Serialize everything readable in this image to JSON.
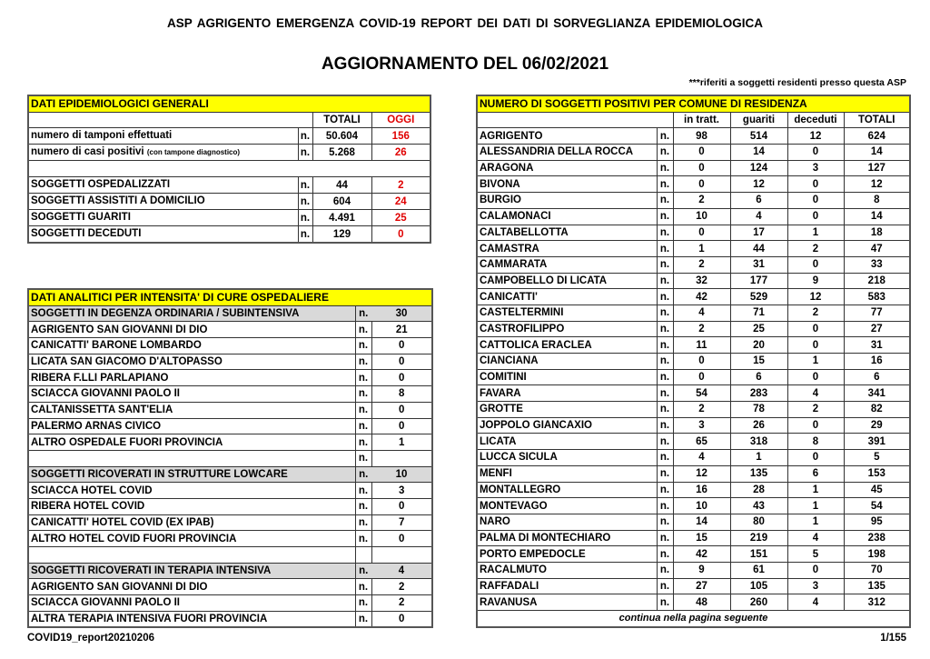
{
  "header": {
    "title": "ASP AGRIGENTO   EMERGENZA COVID-19   REPORT DEI DATI DI SORVEGLIANZA EPIDEMIOLOGICA",
    "subtitle": "AGGIORNAMENTO DEL 06/02/2021",
    "note": "***riferiti a soggetti residenti presso questa ASP"
  },
  "general": {
    "title": "DATI EPIDEMIOLOGICI GENERALI",
    "col_totali": "TOTALI",
    "col_oggi": "OGGI",
    "rows": [
      {
        "label": "numero di tamponi effettuati",
        "sub": "",
        "n": "n.",
        "totali": "50.604",
        "oggi": "156"
      },
      {
        "label": "numero di casi positivi",
        "sub": "(con tampone diagnostico)",
        "n": "n.",
        "totali": "5.268",
        "oggi": "26"
      },
      {
        "label": "",
        "sub": "",
        "n": "",
        "totali": "",
        "oggi": "",
        "blank": true
      },
      {
        "label": "SOGGETTI OSPEDALIZZATI",
        "sub": "",
        "n": "n.",
        "totali": "44",
        "oggi": "2"
      },
      {
        "label": "SOGGETTI ASSISTITI A DOMICILIO",
        "sub": "",
        "n": "n.",
        "totali": "604",
        "oggi": "24"
      },
      {
        "label": "SOGGETTI GUARITI",
        "sub": "",
        "n": "n.",
        "totali": "4.491",
        "oggi": "25"
      },
      {
        "label": "SOGGETTI DECEDUTI",
        "sub": "",
        "n": "n.",
        "totali": "129",
        "oggi": "0"
      }
    ]
  },
  "hospital": {
    "title": "DATI ANALITICI PER INTENSITA' DI CURE OSPEDALIERE",
    "rows": [
      {
        "label": "SOGGETTI IN DEGENZA ORDINARIA / SUBINTENSIVA",
        "n": "n.",
        "value": "30",
        "group": true
      },
      {
        "label": "AGRIGENTO SAN GIOVANNI DI DIO",
        "n": "n.",
        "value": "21"
      },
      {
        "label": "CANICATTI'  BARONE LOMBARDO",
        "n": "n.",
        "value": "0"
      },
      {
        "label": "LICATA SAN GIACOMO D'ALTOPASSO",
        "n": "n.",
        "value": "0"
      },
      {
        "label": "RIBERA F.LLI PARLAPIANO",
        "n": "n.",
        "value": "0"
      },
      {
        "label": "SCIACCA GIOVANNI PAOLO II",
        "n": "n.",
        "value": "8"
      },
      {
        "label": "CALTANISSETTA SANT'ELIA",
        "n": "n.",
        "value": "0"
      },
      {
        "label": "PALERMO ARNAS CIVICO",
        "n": "n.",
        "value": "0"
      },
      {
        "label": "ALTRO OSPEDALE FUORI PROVINCIA",
        "n": "n.",
        "value": "1"
      },
      {
        "label": "",
        "n": "n.",
        "value": ""
      },
      {
        "label": "SOGGETTI RICOVERATI IN STRUTTURE LOWCARE",
        "n": "n.",
        "value": "10",
        "group": true
      },
      {
        "label": "SCIACCA HOTEL COVID",
        "n": "n.",
        "value": "3"
      },
      {
        "label": "RIBERA HOTEL COVID",
        "n": "n.",
        "value": "0"
      },
      {
        "label": "CANICATTI' HOTEL COVID (EX IPAB)",
        "n": "n.",
        "value": "7"
      },
      {
        "label": "ALTRO HOTEL COVID FUORI PROVINCIA",
        "n": "n.",
        "value": "0"
      },
      {
        "label": "",
        "n": "",
        "value": ""
      },
      {
        "label": "SOGGETTI RICOVERATI IN TERAPIA INTENSIVA",
        "n": "n.",
        "value": "4",
        "group": true
      },
      {
        "label": "AGRIGENTO SAN GIOVANNI DI DIO",
        "n": "n.",
        "value": "2"
      },
      {
        "label": "SCIACCA GIOVANNI PAOLO II",
        "n": "n.",
        "value": "2"
      },
      {
        "label": "ALTRA TERAPIA INTENSIVA FUORI PROVINCIA",
        "n": "n.",
        "value": "0"
      }
    ]
  },
  "comuni": {
    "title": "NUMERO DI SOGGETTI POSITIVI PER COMUNE DI RESIDENZA",
    "columns": [
      "in tratt.",
      "guariti",
      "deceduti",
      "TOTALI"
    ],
    "rows": [
      {
        "name": "AGRIGENTO",
        "n": "n.",
        "in_tratt": "98",
        "guariti": "514",
        "deceduti": "12",
        "totali": "624"
      },
      {
        "name": "ALESSANDRIA DELLA ROCCA",
        "n": "n.",
        "in_tratt": "0",
        "guariti": "14",
        "deceduti": "0",
        "totali": "14"
      },
      {
        "name": "ARAGONA",
        "n": "n.",
        "in_tratt": "0",
        "guariti": "124",
        "deceduti": "3",
        "totali": "127"
      },
      {
        "name": "BIVONA",
        "n": "n.",
        "in_tratt": "0",
        "guariti": "12",
        "deceduti": "0",
        "totali": "12"
      },
      {
        "name": "BURGIO",
        "n": "n.",
        "in_tratt": "2",
        "guariti": "6",
        "deceduti": "0",
        "totali": "8"
      },
      {
        "name": "CALAMONACI",
        "n": "n.",
        "in_tratt": "10",
        "guariti": "4",
        "deceduti": "0",
        "totali": "14"
      },
      {
        "name": "CALTABELLOTTA",
        "n": "n.",
        "in_tratt": "0",
        "guariti": "17",
        "deceduti": "1",
        "totali": "18"
      },
      {
        "name": "CAMASTRA",
        "n": "n.",
        "in_tratt": "1",
        "guariti": "44",
        "deceduti": "2",
        "totali": "47"
      },
      {
        "name": "CAMMARATA",
        "n": "n.",
        "in_tratt": "2",
        "guariti": "31",
        "deceduti": "0",
        "totali": "33"
      },
      {
        "name": "CAMPOBELLO DI LICATA",
        "n": "n.",
        "in_tratt": "32",
        "guariti": "177",
        "deceduti": "9",
        "totali": "218"
      },
      {
        "name": "CANICATTI'",
        "n": "n.",
        "in_tratt": "42",
        "guariti": "529",
        "deceduti": "12",
        "totali": "583"
      },
      {
        "name": "CASTELTERMINI",
        "n": "n.",
        "in_tratt": "4",
        "guariti": "71",
        "deceduti": "2",
        "totali": "77"
      },
      {
        "name": "CASTROFILIPPO",
        "n": "n.",
        "in_tratt": "2",
        "guariti": "25",
        "deceduti": "0",
        "totali": "27"
      },
      {
        "name": "CATTOLICA ERACLEA",
        "n": "n.",
        "in_tratt": "11",
        "guariti": "20",
        "deceduti": "0",
        "totali": "31"
      },
      {
        "name": "CIANCIANA",
        "n": "n.",
        "in_tratt": "0",
        "guariti": "15",
        "deceduti": "1",
        "totali": "16"
      },
      {
        "name": "COMITINI",
        "n": "n.",
        "in_tratt": "0",
        "guariti": "6",
        "deceduti": "0",
        "totali": "6"
      },
      {
        "name": "FAVARA",
        "n": "n.",
        "in_tratt": "54",
        "guariti": "283",
        "deceduti": "4",
        "totali": "341"
      },
      {
        "name": "GROTTE",
        "n": "n.",
        "in_tratt": "2",
        "guariti": "78",
        "deceduti": "2",
        "totali": "82"
      },
      {
        "name": "JOPPOLO GIANCAXIO",
        "n": "n.",
        "in_tratt": "3",
        "guariti": "26",
        "deceduti": "0",
        "totali": "29"
      },
      {
        "name": "LICATA",
        "n": "n.",
        "in_tratt": "65",
        "guariti": "318",
        "deceduti": "8",
        "totali": "391"
      },
      {
        "name": "LUCCA SICULA",
        "n": "n.",
        "in_tratt": "4",
        "guariti": "1",
        "deceduti": "0",
        "totali": "5"
      },
      {
        "name": "MENFI",
        "n": "n.",
        "in_tratt": "12",
        "guariti": "135",
        "deceduti": "6",
        "totali": "153"
      },
      {
        "name": "MONTALLEGRO",
        "n": "n.",
        "in_tratt": "16",
        "guariti": "28",
        "deceduti": "1",
        "totali": "45"
      },
      {
        "name": "MONTEVAGO",
        "n": "n.",
        "in_tratt": "10",
        "guariti": "43",
        "deceduti": "1",
        "totali": "54"
      },
      {
        "name": "NARO",
        "n": "n.",
        "in_tratt": "14",
        "guariti": "80",
        "deceduti": "1",
        "totali": "95"
      },
      {
        "name": "PALMA DI MONTECHIARO",
        "n": "n.",
        "in_tratt": "15",
        "guariti": "219",
        "deceduti": "4",
        "totali": "238"
      },
      {
        "name": "PORTO EMPEDOCLE",
        "n": "n.",
        "in_tratt": "42",
        "guariti": "151",
        "deceduti": "5",
        "totali": "198"
      },
      {
        "name": "RACALMUTO",
        "n": "n.",
        "in_tratt": "9",
        "guariti": "61",
        "deceduti": "0",
        "totali": "70"
      },
      {
        "name": "RAFFADALI",
        "n": "n.",
        "in_tratt": "27",
        "guariti": "105",
        "deceduti": "3",
        "totali": "135"
      },
      {
        "name": "RAVANUSA",
        "n": "n.",
        "in_tratt": "48",
        "guariti": "260",
        "deceduti": "4",
        "totali": "312"
      }
    ],
    "continued": "continua nella pagina seguente"
  },
  "footer": {
    "filename": "COVID19_report20210206",
    "page": "1/155"
  },
  "colors": {
    "header_yellow": "#ffff00",
    "today_red": "#e00000",
    "group_gray": "#d9d9d9"
  }
}
